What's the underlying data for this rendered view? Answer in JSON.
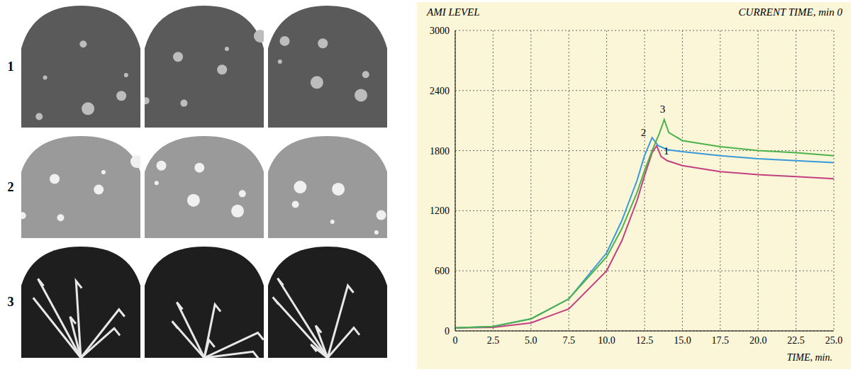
{
  "image_panel": {
    "row_labels": [
      "1",
      "2",
      "3"
    ]
  },
  "chart_data": {
    "type": "line",
    "y_label": "AMI LEVEL",
    "subtitle": "CURRENT TIME, min 0",
    "x_label": "TIME, min.",
    "xlim": [
      0,
      25
    ],
    "xticks": [
      0,
      2.5,
      {
        "value": 5,
        "label": "5.0"
      },
      7.5,
      {
        "value": 10,
        "label": "10.0"
      },
      12.5,
      {
        "value": 15,
        "label": "15.0"
      },
      17.5,
      {
        "value": 20,
        "label": "20.0"
      },
      22.5,
      {
        "value": 25,
        "label": "25.0"
      }
    ],
    "ylim": [
      0,
      3000
    ],
    "yticks": [
      0,
      600,
      1200,
      1800,
      2400,
      3000
    ],
    "grid": true,
    "series": [
      {
        "name": "1",
        "color": "#c2407f",
        "x": [
          0,
          2.5,
          5,
          7.5,
          10,
          11,
          12,
          12.5,
          13,
          13.3,
          13.6,
          14,
          15,
          17.5,
          20,
          22.5,
          25
        ],
        "values": [
          30,
          35,
          80,
          220,
          600,
          900,
          1300,
          1550,
          1780,
          1850,
          1740,
          1700,
          1650,
          1590,
          1560,
          1540,
          1520
        ]
      },
      {
        "name": "2",
        "color": "#3a9ad9",
        "x": [
          0,
          2.5,
          5,
          7.5,
          10,
          11,
          12,
          12.5,
          13,
          13.4,
          14,
          15,
          17.5,
          20,
          22.5,
          25
        ],
        "values": [
          30,
          45,
          120,
          320,
          780,
          1100,
          1500,
          1750,
          1930,
          1850,
          1810,
          1790,
          1750,
          1720,
          1700,
          1680
        ]
      },
      {
        "name": "3",
        "color": "#4cb34c",
        "x": [
          0,
          2.5,
          5,
          7.5,
          10,
          11,
          12,
          12.5,
          13,
          13.5,
          13.8,
          14.1,
          15,
          17.5,
          20,
          22.5,
          25
        ],
        "values": [
          30,
          45,
          120,
          320,
          740,
          1020,
          1380,
          1600,
          1800,
          1980,
          2110,
          1980,
          1900,
          1840,
          1800,
          1780,
          1750
        ]
      }
    ]
  }
}
